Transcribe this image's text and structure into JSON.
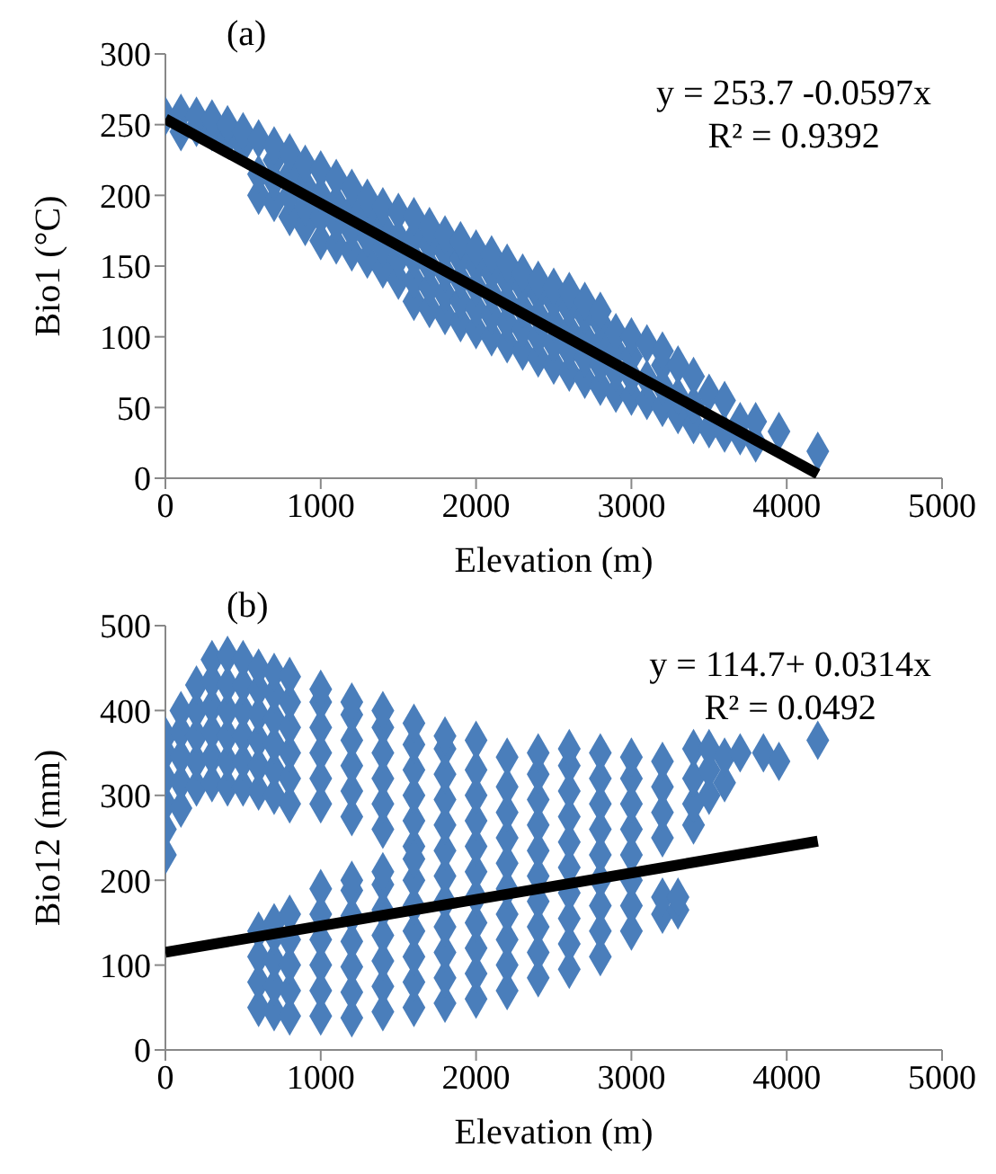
{
  "chart_data": [
    {
      "type": "scatter",
      "xlabel": "Elevation (m)",
      "ylabel": "Bio1 (°C)",
      "xlim": [
        0,
        5000
      ],
      "xticks": [
        0,
        1000,
        2000,
        3000,
        4000,
        5000
      ],
      "ylim": [
        0,
        300
      ],
      "yticks": [
        0,
        50,
        100,
        150,
        200,
        250,
        300
      ],
      "annotations": [
        "(a)",
        "y = 253.7 -0.0597x",
        "R² = 0.9392"
      ],
      "series": [
        {
          "color": "#4a7ebb",
          "marker": "diamond",
          "x": [
            0,
            100,
            100,
            200,
            200,
            300,
            300,
            400,
            400,
            500,
            500,
            600,
            600,
            600,
            700,
            700,
            700,
            700,
            800,
            800,
            800,
            800,
            900,
            900,
            900,
            900,
            1000,
            1000,
            1000,
            1000,
            1100,
            1100,
            1100,
            1100,
            1200,
            1200,
            1200,
            1200,
            1300,
            1300,
            1300,
            1300,
            1400,
            1400,
            1400,
            1400,
            1500,
            1500,
            1500,
            1500,
            1600,
            1600,
            1600,
            1600,
            1600,
            1700,
            1700,
            1700,
            1700,
            1700,
            1800,
            1800,
            1800,
            1800,
            1800,
            1900,
            1900,
            1900,
            1900,
            1900,
            2000,
            2000,
            2000,
            2000,
            2000,
            2100,
            2100,
            2100,
            2100,
            2100,
            2200,
            2200,
            2200,
            2200,
            2200,
            2300,
            2300,
            2300,
            2300,
            2300,
            2400,
            2400,
            2400,
            2400,
            2400,
            2500,
            2500,
            2500,
            2500,
            2500,
            2600,
            2600,
            2600,
            2600,
            2600,
            2700,
            2700,
            2700,
            2700,
            2700,
            2800,
            2800,
            2800,
            2800,
            2800,
            2900,
            2900,
            2900,
            2900,
            3000,
            3000,
            3000,
            3000,
            3100,
            3100,
            3100,
            3200,
            3200,
            3200,
            3200,
            3300,
            3300,
            3300,
            3400,
            3400,
            3400,
            3500,
            3500,
            3600,
            3600,
            3700,
            3700,
            3800,
            3800,
            3950,
            4200
          ],
          "values": [
            256,
            245,
            258,
            248,
            256,
            245,
            254,
            240,
            250,
            235,
            245,
            200,
            215,
            240,
            195,
            210,
            225,
            235,
            185,
            200,
            215,
            230,
            178,
            192,
            207,
            222,
            168,
            185,
            200,
            218,
            165,
            180,
            195,
            212,
            160,
            175,
            190,
            205,
            155,
            170,
            185,
            198,
            148,
            163,
            178,
            192,
            140,
            155,
            170,
            188,
            125,
            140,
            155,
            170,
            185,
            120,
            135,
            150,
            165,
            178,
            115,
            130,
            145,
            160,
            172,
            110,
            125,
            140,
            155,
            168,
            105,
            120,
            135,
            150,
            162,
            100,
            115,
            130,
            145,
            158,
            95,
            110,
            125,
            140,
            152,
            90,
            105,
            120,
            135,
            145,
            85,
            100,
            115,
            130,
            140,
            80,
            95,
            110,
            125,
            135,
            75,
            90,
            105,
            120,
            132,
            70,
            85,
            100,
            115,
            125,
            65,
            80,
            95,
            110,
            118,
            60,
            75,
            90,
            103,
            58,
            72,
            86,
            100,
            55,
            70,
            95,
            50,
            65,
            80,
            90,
            45,
            58,
            80,
            38,
            52,
            72,
            35,
            60,
            32,
            55,
            30,
            40,
            25,
            40,
            33,
            19
          ]
        },
        {
          "type": "line",
          "color": "#000000",
          "x": [
            0,
            4200
          ],
          "values": [
            254,
            3
          ]
        }
      ]
    },
    {
      "type": "scatter",
      "xlabel": "Elevation (m)",
      "ylabel": "Bio12 (mm)",
      "xlim": [
        0,
        5000
      ],
      "xticks": [
        0,
        1000,
        2000,
        3000,
        4000,
        5000
      ],
      "ylim": [
        0,
        500
      ],
      "yticks": [
        0,
        100,
        200,
        300,
        400,
        500
      ],
      "annotations": [
        "(b)",
        "y = 114.7+ 0.0314x",
        "R² = 0.0492"
      ],
      "series": [
        {
          "color": "#4a7ebb",
          "marker": "diamond",
          "x": [
            0,
            0,
            0,
            0,
            0,
            0,
            100,
            100,
            100,
            100,
            100,
            200,
            200,
            200,
            200,
            200,
            300,
            300,
            300,
            300,
            300,
            300,
            400,
            400,
            400,
            400,
            400,
            400,
            500,
            500,
            500,
            500,
            500,
            500,
            600,
            600,
            600,
            600,
            600,
            600,
            600,
            600,
            600,
            600,
            700,
            700,
            700,
            700,
            700,
            700,
            700,
            700,
            700,
            700,
            700,
            800,
            800,
            800,
            800,
            800,
            800,
            800,
            800,
            800,
            800,
            800,
            1000,
            1000,
            1000,
            1000,
            1000,
            1000,
            1000,
            1000,
            1000,
            1000,
            1000,
            1000,
            1200,
            1200,
            1200,
            1200,
            1200,
            1200,
            1200,
            1200,
            1200,
            1200,
            1200,
            1200,
            1200,
            1400,
            1400,
            1400,
            1400,
            1400,
            1400,
            1400,
            1400,
            1400,
            1400,
            1400,
            1400,
            1400,
            1600,
            1600,
            1600,
            1600,
            1600,
            1600,
            1600,
            1600,
            1600,
            1600,
            1600,
            1600,
            1600,
            1800,
            1800,
            1800,
            1800,
            1800,
            1800,
            1800,
            1800,
            1800,
            1800,
            1800,
            1800,
            2000,
            2000,
            2000,
            2000,
            2000,
            2000,
            2000,
            2000,
            2000,
            2000,
            2000,
            2200,
            2200,
            2200,
            2200,
            2200,
            2200,
            2200,
            2200,
            2200,
            2200,
            2400,
            2400,
            2400,
            2400,
            2400,
            2400,
            2400,
            2400,
            2400,
            2400,
            2600,
            2600,
            2600,
            2600,
            2600,
            2600,
            2600,
            2600,
            2600,
            2600,
            2800,
            2800,
            2800,
            2800,
            2800,
            2800,
            2800,
            2800,
            2800,
            3000,
            3000,
            3000,
            3000,
            3000,
            3000,
            3000,
            3000,
            3200,
            3200,
            3200,
            3200,
            3200,
            3200,
            3300,
            3300,
            3400,
            3400,
            3400,
            3400,
            3500,
            3500,
            3500,
            3600,
            3600,
            3700,
            3850,
            3950,
            4200
          ],
          "values": [
            230,
            260,
            290,
            320,
            350,
            370,
            285,
            315,
            345,
            375,
            400,
            310,
            340,
            370,
            400,
            430,
            315,
            345,
            375,
            405,
            435,
            460,
            310,
            340,
            370,
            400,
            430,
            465,
            310,
            340,
            370,
            400,
            430,
            460,
            305,
            335,
            365,
            395,
            425,
            450,
            50,
            80,
            110,
            140,
            300,
            330,
            360,
            390,
            420,
            445,
            45,
            75,
            105,
            135,
            150,
            290,
            320,
            350,
            380,
            410,
            440,
            40,
            70,
            100,
            130,
            160,
            290,
            320,
            350,
            380,
            410,
            425,
            40,
            70,
            100,
            130,
            160,
            190,
            275,
            305,
            335,
            365,
            395,
            410,
            38,
            68,
            98,
            128,
            158,
            188,
            200,
            260,
            290,
            320,
            350,
            380,
            400,
            45,
            75,
            105,
            135,
            165,
            195,
            210,
            240,
            270,
            300,
            330,
            360,
            385,
            50,
            80,
            110,
            140,
            170,
            200,
            225,
            55,
            85,
            115,
            145,
            175,
            205,
            235,
            265,
            295,
            325,
            355,
            370,
            60,
            90,
            120,
            150,
            180,
            210,
            240,
            270,
            300,
            330,
            365,
            70,
            100,
            130,
            160,
            190,
            220,
            250,
            280,
            310,
            345,
            85,
            115,
            145,
            175,
            205,
            235,
            265,
            295,
            325,
            350,
            95,
            125,
            155,
            185,
            215,
            245,
            275,
            305,
            335,
            355,
            110,
            140,
            170,
            200,
            230,
            260,
            290,
            320,
            350,
            140,
            170,
            200,
            230,
            260,
            290,
            320,
            345,
            160,
            180,
            250,
            280,
            310,
            340,
            165,
            180,
            265,
            290,
            320,
            355,
            300,
            330,
            355,
            315,
            345,
            350,
            350,
            340,
            365
          ]
        },
        {
          "type": "line",
          "color": "#000000",
          "x": [
            0,
            4200
          ],
          "values": [
            115,
            246
          ]
        }
      ]
    }
  ]
}
